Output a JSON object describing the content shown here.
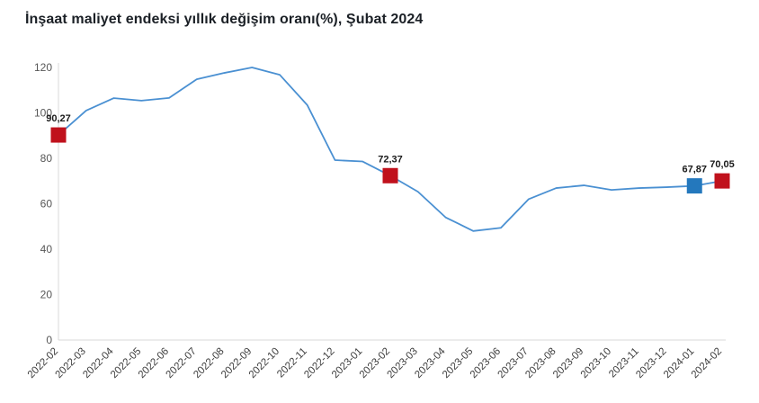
{
  "page_title": "İnşaat maliyet endeksi yıllık değişim oranı(%), Şubat 2024",
  "chart_data": {
    "type": "line",
    "title": "İnşaat maliyet endeksi yıllık değişim oranı(%), Şubat 2024",
    "categories": [
      "2022-02",
      "2022-03",
      "2022-04",
      "2022-05",
      "2022-06",
      "2022-07",
      "2022-08",
      "2022-09",
      "2022-10",
      "2022-11",
      "2022-12",
      "2023-01",
      "2023-02",
      "2023-03",
      "2023-04",
      "2023-05",
      "2023-06",
      "2023-07",
      "2023-08",
      "2023-09",
      "2023-10",
      "2023-11",
      "2023-12",
      "2024-01",
      "2024-02"
    ],
    "series": [
      {
        "name": "İnşaat maliyet endeksi yıllık değişim oranı (%)",
        "values": [
          90.27,
          101.0,
          106.5,
          105.4,
          106.6,
          114.8,
          117.6,
          120.0,
          116.8,
          103.4,
          79.2,
          78.6,
          72.37,
          65.3,
          54.0,
          48.0,
          49.4,
          62.0,
          66.9,
          68.1,
          66.1,
          66.9,
          67.3,
          67.87,
          70.05
        ]
      }
    ],
    "xlabel": "",
    "ylabel": "",
    "ylim": [
      0,
      120
    ],
    "yticks": [
      0,
      20,
      40,
      60,
      80,
      100,
      120
    ],
    "grid": false,
    "legend_position": "none",
    "line_color": "#4a90d2",
    "axis_color": "#d8d8d8",
    "annotations": [
      {
        "index": 0,
        "label": "90,27",
        "marker_color": "#c0111c"
      },
      {
        "index": 12,
        "label": "72,37",
        "marker_color": "#c0111c"
      },
      {
        "index": 23,
        "label": "67,87",
        "marker_color": "#2478bd"
      },
      {
        "index": 24,
        "label": "70,05",
        "marker_color": "#c0111c"
      }
    ]
  }
}
